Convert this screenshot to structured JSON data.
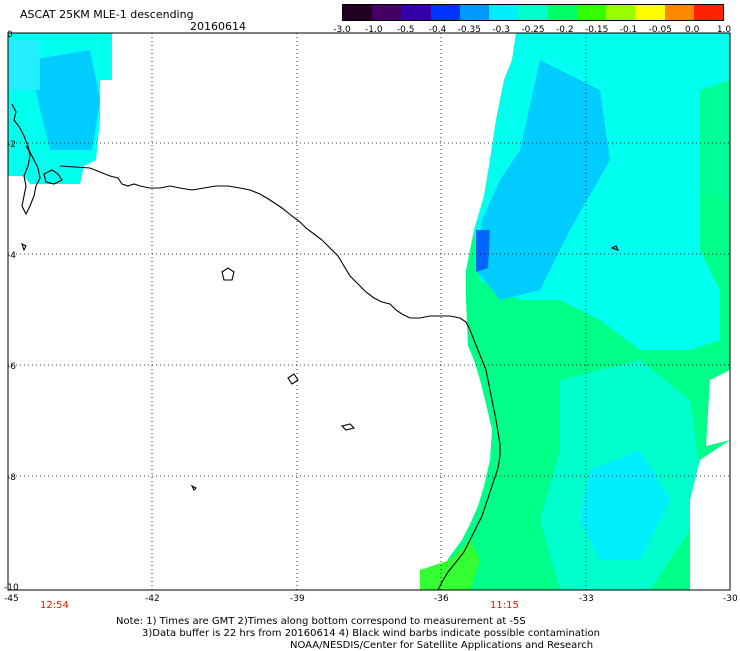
{
  "header": {
    "title": "ASCAT 25KM MLE-1 descending",
    "date": "20160614"
  },
  "colorbar": {
    "labels": [
      "-3.0",
      "-1.0",
      "-0.5",
      "-0.4",
      "-0.35",
      "-0.3",
      "-0.25",
      "-0.2",
      "-0.15",
      "-0.1",
      "-0.05",
      "0.0",
      "1.0"
    ],
    "colors": [
      "#220022",
      "#440066",
      "#3300aa",
      "#0033ff",
      "#0099ff",
      "#00eeff",
      "#00ffcc",
      "#00ff66",
      "#33ff00",
      "#99ff00",
      "#ffff00",
      "#ff8800",
      "#ff2200"
    ]
  },
  "axes": {
    "x_labels": [
      "-45",
      "-42",
      "-39",
      "-36",
      "-33",
      "-30"
    ],
    "y_labels": [
      "0",
      "-2",
      "-4",
      "-6",
      "-8",
      "-10"
    ]
  },
  "times": {
    "left": "12:54",
    "right": "11:15"
  },
  "footer": {
    "line1": "Note: 1) Times are GMT 2)Times along bottom correspond to measurement at -5S",
    "line2": "3)Data buffer is 22 hrs from 20160614 4) Black wind barbs indicate possible contamination",
    "line3": "NOAA/NESDIS/Center for Satellite Applications and Research"
  }
}
